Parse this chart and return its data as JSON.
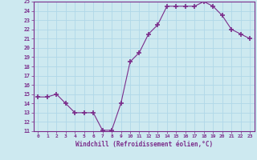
{
  "x": [
    0,
    1,
    2,
    3,
    4,
    5,
    6,
    7,
    8,
    9,
    10,
    11,
    12,
    13,
    14,
    15,
    16,
    17,
    18,
    19,
    20,
    21,
    22,
    23
  ],
  "y": [
    14.7,
    14.7,
    15.0,
    14.0,
    13.0,
    13.0,
    13.0,
    11.1,
    11.1,
    14.0,
    18.5,
    19.5,
    21.5,
    22.5,
    24.5,
    24.5,
    24.5,
    24.5,
    25.0,
    24.5,
    23.5,
    22.0,
    21.5,
    21.0
  ],
  "ylim": [
    11,
    25
  ],
  "yticks": [
    11,
    12,
    13,
    14,
    15,
    16,
    17,
    18,
    19,
    20,
    21,
    22,
    23,
    24,
    25
  ],
  "xtick_labels": [
    "0",
    "1",
    "2",
    "3",
    "4",
    "5",
    "6",
    "7",
    "8",
    "9",
    "10",
    "11",
    "12",
    "13",
    "14",
    "15",
    "16",
    "17",
    "18",
    "19",
    "20",
    "21",
    "22",
    "23"
  ],
  "xlabel": "Windchill (Refroidissement éolien,°C)",
  "line_color": "#7b2d8b",
  "marker": "+",
  "marker_size": 4,
  "bg_color": "#cde9f0",
  "grid_color": "#b0d8e8",
  "spine_color": "#7b2d8b",
  "tick_color": "#7b2d8b",
  "label_color": "#7b2d8b"
}
